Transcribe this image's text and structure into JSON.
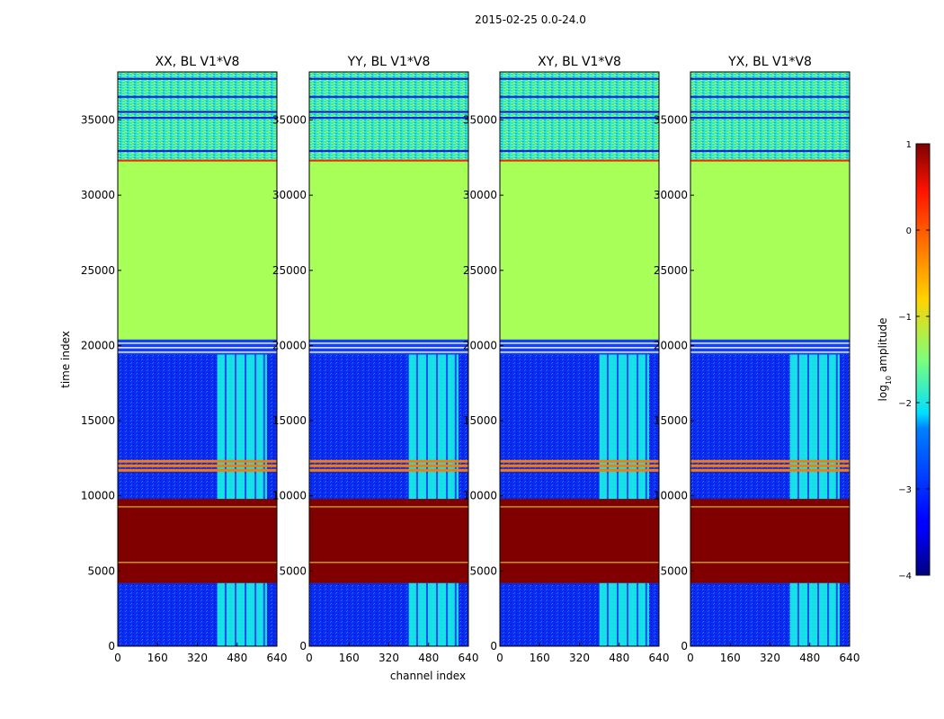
{
  "figure": {
    "suptitle": "2015-02-25 0.0-24.0",
    "xlabel": "channel index",
    "ylabel": "time index",
    "colorbar": {
      "label_prefix": "log",
      "label_sub": "10",
      "label_suffix": " amplitude",
      "ticks": [
        "1",
        "0",
        "−1",
        "−2",
        "−3",
        "−4"
      ],
      "range": [
        -4,
        1
      ],
      "colormap": "jet"
    }
  },
  "chart_data": [
    {
      "type": "heatmap",
      "title": "XX, BL V1*V8",
      "xlabel": "channel index",
      "ylabel": "time index",
      "xlim": [
        0,
        640
      ],
      "ylim": [
        0,
        38200
      ],
      "xticks": [
        "0",
        "160",
        "320",
        "480",
        "640"
      ],
      "yticks": [
        "0",
        "5000",
        "10000",
        "15000",
        "20000",
        "25000",
        "30000",
        "35000"
      ],
      "bands": [
        {
          "t0": 0,
          "t1": 4200,
          "value": -3.1,
          "note": "low noise"
        },
        {
          "t0": 4200,
          "t1": 9800,
          "value": 1.0,
          "note": "saturated"
        },
        {
          "t0": 9800,
          "t1": 19400,
          "value": -3.0,
          "note": "low noise"
        },
        {
          "t0": 20400,
          "t1": 32300,
          "value": -1.3,
          "note": "uniform"
        },
        {
          "t0": 32300,
          "t1": 38200,
          "value": -2.3,
          "note": "mixed"
        }
      ],
      "channel_bands": [
        {
          "c0": 400,
          "c1": 600,
          "value": -2.0
        }
      ]
    },
    {
      "type": "heatmap",
      "title": "YY, BL V1*V8",
      "xlabel": "channel index",
      "ylabel": "time index",
      "xlim": [
        0,
        640
      ],
      "ylim": [
        0,
        38200
      ],
      "xticks": [
        "0",
        "160",
        "320",
        "480",
        "640"
      ],
      "yticks": [
        "0",
        "5000",
        "10000",
        "15000",
        "20000",
        "25000",
        "30000",
        "35000"
      ],
      "bands": [
        {
          "t0": 0,
          "t1": 4200,
          "value": -3.1,
          "note": "low noise"
        },
        {
          "t0": 4200,
          "t1": 9800,
          "value": 1.0,
          "note": "saturated"
        },
        {
          "t0": 9800,
          "t1": 19400,
          "value": -3.0,
          "note": "low noise"
        },
        {
          "t0": 20400,
          "t1": 32300,
          "value": -1.3,
          "note": "uniform"
        },
        {
          "t0": 32300,
          "t1": 38200,
          "value": -2.3,
          "note": "mixed"
        }
      ],
      "channel_bands": [
        {
          "c0": 400,
          "c1": 600,
          "value": -2.0
        }
      ]
    },
    {
      "type": "heatmap",
      "title": "XY, BL V1*V8",
      "xlabel": "channel index",
      "ylabel": "time index",
      "xlim": [
        0,
        640
      ],
      "ylim": [
        0,
        38200
      ],
      "xticks": [
        "0",
        "160",
        "320",
        "480",
        "640"
      ],
      "yticks": [
        "0",
        "5000",
        "10000",
        "15000",
        "20000",
        "25000",
        "30000",
        "35000"
      ],
      "bands": [
        {
          "t0": 0,
          "t1": 4200,
          "value": -3.1,
          "note": "low noise"
        },
        {
          "t0": 4200,
          "t1": 9800,
          "value": 1.0,
          "note": "saturated"
        },
        {
          "t0": 9800,
          "t1": 19400,
          "value": -3.0,
          "note": "low noise"
        },
        {
          "t0": 20400,
          "t1": 32300,
          "value": -1.3,
          "note": "uniform"
        },
        {
          "t0": 32300,
          "t1": 38200,
          "value": -2.3,
          "note": "mixed"
        }
      ],
      "channel_bands": [
        {
          "c0": 400,
          "c1": 600,
          "value": -2.0
        }
      ]
    },
    {
      "type": "heatmap",
      "title": "YX, BL V1*V8",
      "xlabel": "channel index",
      "ylabel": "time index",
      "xlim": [
        0,
        640
      ],
      "ylim": [
        0,
        38200
      ],
      "xticks": [
        "0",
        "160",
        "320",
        "480",
        "640"
      ],
      "yticks": [
        "0",
        "5000",
        "10000",
        "15000",
        "20000",
        "25000",
        "30000",
        "35000"
      ],
      "bands": [
        {
          "t0": 0,
          "t1": 4200,
          "value": -3.1,
          "note": "low noise"
        },
        {
          "t0": 4200,
          "t1": 9800,
          "value": 1.0,
          "note": "saturated"
        },
        {
          "t0": 9800,
          "t1": 19400,
          "value": -3.0,
          "note": "low noise"
        },
        {
          "t0": 20400,
          "t1": 32300,
          "value": -1.3,
          "note": "uniform"
        },
        {
          "t0": 32300,
          "t1": 38200,
          "value": -2.3,
          "note": "mixed"
        }
      ],
      "channel_bands": [
        {
          "c0": 400,
          "c1": 600,
          "value": -2.0
        }
      ]
    }
  ]
}
